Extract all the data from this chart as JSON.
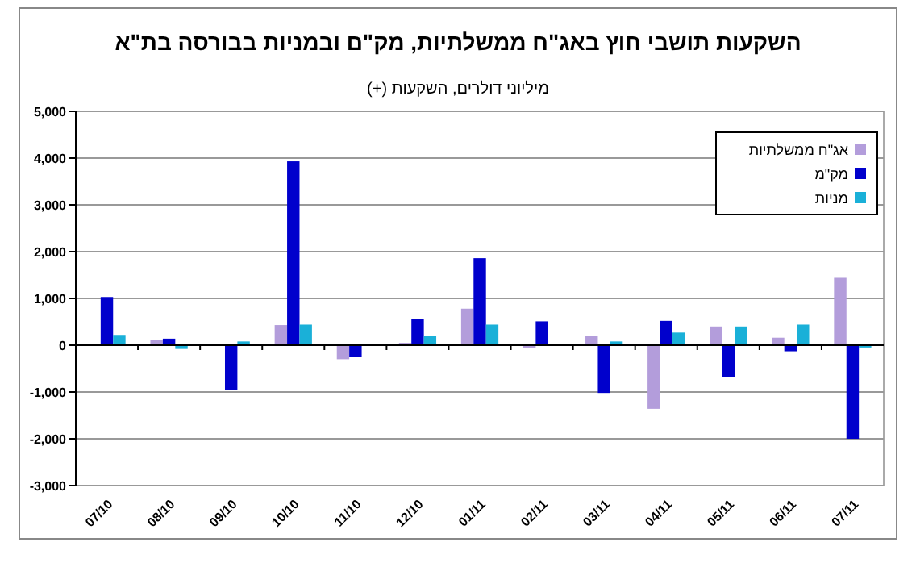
{
  "chart_data": {
    "type": "bar",
    "title": "השקעות תושבי חוץ באג\"ח ממשלתיות, מק\"ם ובמניות בבורסה בת\"א",
    "subtitle": "מיליוני דולרים, השקעות (+)",
    "categories": [
      "07/10",
      "08/10",
      "09/10",
      "10/10",
      "11/10",
      "12/10",
      "01/11",
      "02/11",
      "03/11",
      "04/11",
      "05/11",
      "06/11",
      "07/11"
    ],
    "series": [
      {
        "name": "אג\"ח ממשלתיות",
        "color": "#b39ddb",
        "values": [
          null,
          120,
          null,
          430,
          -300,
          50,
          780,
          -60,
          200,
          -1360,
          400,
          160,
          1440
        ]
      },
      {
        "name": "מק\"מ",
        "color": "#0000cc",
        "values": [
          1030,
          140,
          -950,
          3930,
          -250,
          560,
          1860,
          510,
          -1020,
          520,
          -680,
          -130,
          -2000
        ]
      },
      {
        "name": "מניות",
        "color": "#1ab0d8",
        "values": [
          220,
          -80,
          80,
          440,
          null,
          190,
          440,
          null,
          80,
          270,
          400,
          440,
          -50
        ]
      }
    ],
    "ylim": [
      -3000,
      5000
    ],
    "yticks": [
      {
        "value": -3000,
        "label": "-3,000"
      },
      {
        "value": -2000,
        "label": "-2,000"
      },
      {
        "value": -1000,
        "label": "-1,000"
      },
      0,
      {
        "value": 1000,
        "label": "1,000"
      },
      {
        "value": 2000,
        "label": "2,000"
      },
      {
        "value": 3000,
        "label": "3,000"
      },
      {
        "value": 4000,
        "label": "4,000"
      },
      {
        "value": 5000,
        "label": "5,000"
      }
    ],
    "grid": "y",
    "legend": "top right"
  }
}
